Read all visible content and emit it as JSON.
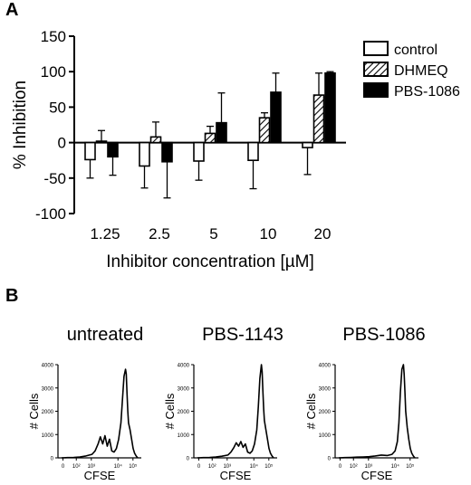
{
  "panels": {
    "a": "A",
    "b": "B"
  },
  "chart_data": [
    {
      "type": "bar",
      "panel": "A",
      "categories": [
        "1.25",
        "2.5",
        "5",
        "10",
        "20"
      ],
      "xlabel": "Inhibitor concentration [µM]",
      "ylabel": "% Inhibition",
      "ylim": [
        -100,
        150
      ],
      "yticks": [
        -100,
        -50,
        0,
        50,
        100,
        150
      ],
      "legend_position": "right",
      "series": [
        {
          "name": "control",
          "style": "open",
          "values": [
            -24,
            -33,
            -26,
            -25,
            -7
          ],
          "errors": [
            26,
            31,
            27,
            40,
            38
          ]
        },
        {
          "name": "DHMEQ",
          "style": "hatched",
          "values": [
            2,
            8,
            13,
            35,
            67
          ],
          "errors": [
            15,
            21,
            10,
            7,
            31
          ]
        },
        {
          "name": "PBS-1086",
          "style": "solid",
          "values": [
            -20,
            -27,
            28,
            71,
            98
          ],
          "errors": [
            26,
            51,
            42,
            27,
            2
          ]
        }
      ]
    },
    {
      "type": "line",
      "panel": "B",
      "title": "untreated",
      "xlabel": "CFSE",
      "ylabel": "# Cells",
      "ylim": [
        0,
        4000
      ],
      "yticks": [
        "0",
        "1000",
        "2000",
        "3000",
        "4000"
      ],
      "xticks": [
        "0",
        "10²",
        "10³",
        "10⁴",
        "10⁵"
      ],
      "x": [
        0,
        0.4,
        0.8,
        1.2,
        1.6,
        2.0,
        2.2,
        2.4,
        2.55,
        2.7,
        2.85,
        3.0,
        3.15,
        3.3,
        3.45,
        3.6,
        3.75,
        3.9,
        4.0,
        4.1,
        4.2,
        4.25,
        4.3,
        4.35,
        4.4,
        4.5,
        4.6,
        4.7,
        4.8,
        4.9,
        5.0
      ],
      "y": [
        0,
        10,
        20,
        40,
        80,
        150,
        300,
        600,
        900,
        600,
        950,
        500,
        800,
        300,
        250,
        400,
        800,
        1500,
        2500,
        3500,
        3800,
        3600,
        2800,
        2000,
        1500,
        1200,
        800,
        400,
        200,
        80,
        0
      ]
    },
    {
      "type": "line",
      "panel": "B",
      "title": "PBS-1143",
      "xlabel": "CFSE",
      "ylabel": "# Cells",
      "ylim": [
        0,
        4000
      ],
      "yticks": [
        "0",
        "1000",
        "2000",
        "3000",
        "4000"
      ],
      "xticks": [
        "0",
        "10²",
        "10³",
        "10⁴",
        "10⁵"
      ],
      "x": [
        0,
        0.4,
        0.8,
        1.2,
        1.6,
        2.0,
        2.2,
        2.4,
        2.55,
        2.7,
        2.85,
        3.0,
        3.15,
        3.3,
        3.45,
        3.6,
        3.75,
        3.9,
        4.0,
        4.1,
        4.2,
        4.25,
        4.3,
        4.35,
        4.4,
        4.5,
        4.6,
        4.7,
        4.8,
        4.9,
        5.0
      ],
      "y": [
        0,
        10,
        20,
        40,
        70,
        120,
        250,
        450,
        650,
        500,
        700,
        450,
        600,
        250,
        200,
        300,
        600,
        1200,
        2200,
        3400,
        4000,
        3700,
        2900,
        2100,
        1600,
        1200,
        800,
        400,
        200,
        80,
        0
      ]
    },
    {
      "type": "line",
      "panel": "B",
      "title": "PBS-1086",
      "xlabel": "CFSE",
      "ylabel": "# Cells",
      "ylim": [
        0,
        4000
      ],
      "yticks": [
        "0",
        "1000",
        "2000",
        "3000",
        "4000"
      ],
      "xticks": [
        "0",
        "10²",
        "10³",
        "10⁴",
        "10⁵"
      ],
      "x": [
        0,
        0.4,
        0.8,
        1.2,
        1.6,
        2.0,
        2.4,
        2.8,
        3.2,
        3.5,
        3.7,
        3.85,
        3.95,
        4.05,
        4.15,
        4.25,
        4.3,
        4.35,
        4.4,
        4.5,
        4.6,
        4.7,
        4.8,
        4.9,
        5.0
      ],
      "y": [
        0,
        10,
        20,
        30,
        40,
        50,
        80,
        120,
        100,
        150,
        300,
        700,
        1500,
        2800,
        3800,
        4000,
        3600,
        2800,
        2000,
        1300,
        800,
        400,
        200,
        80,
        0
      ]
    }
  ]
}
